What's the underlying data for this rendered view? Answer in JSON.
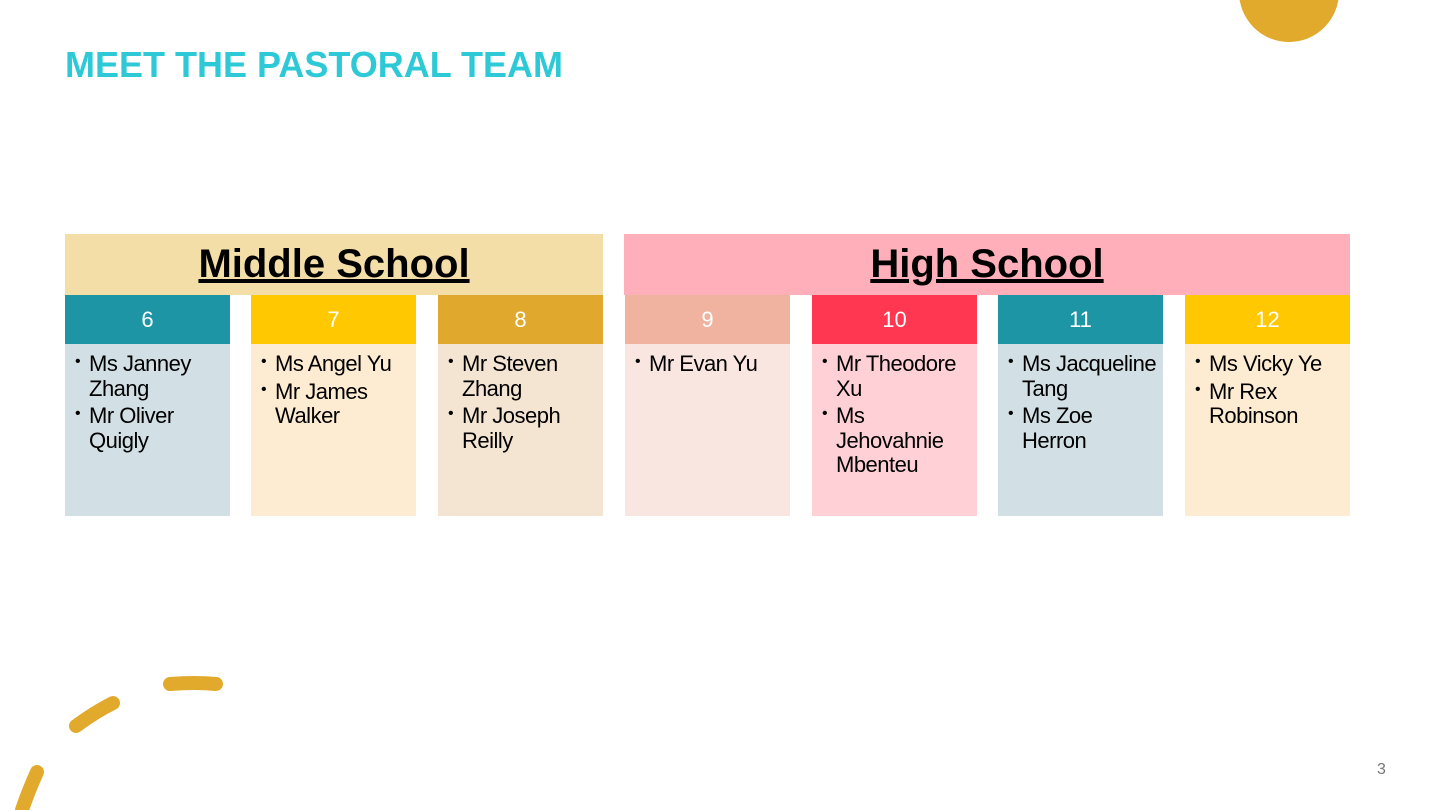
{
  "title": "MEET THE PASTORAL TEAM",
  "page_number": "3",
  "colors": {
    "title": "#2ec9d6",
    "accent": "#e2aa2c"
  },
  "sections": [
    {
      "label": "Middle School",
      "color": "#f3dea8"
    },
    {
      "label": "High School",
      "color": "#ffafb9"
    }
  ],
  "grades": [
    {
      "grade": "6",
      "header_color": "#1e95a5",
      "body_color": "#d2dfe5",
      "staff": [
        "Ms Janney Zhang",
        "Mr Oliver Quigly"
      ]
    },
    {
      "grade": "7",
      "header_color": "#ffc800",
      "body_color": "#feecd2",
      "staff": [
        "Ms Angel Yu",
        "Mr James Walker"
      ]
    },
    {
      "grade": "8",
      "header_color": "#e0a92e",
      "body_color": "#f4e5d3",
      "staff": [
        "Mr Steven Zhang",
        "Mr Joseph Reilly"
      ]
    },
    {
      "grade": "9",
      "header_color": "#efb3a0",
      "body_color": "#fae6e1",
      "staff": [
        "Mr Evan Yu"
      ]
    },
    {
      "grade": "10",
      "header_color": "#ff3750",
      "body_color": "#ffd1d6",
      "staff": [
        "Mr Theodore Xu",
        "Ms Jehovahnie Mbenteu"
      ]
    },
    {
      "grade": "11",
      "header_color": "#1e95a5",
      "body_color": "#d2dfe5",
      "staff": [
        "Ms Jacqueline Tang",
        "Ms Zoe Herron"
      ]
    },
    {
      "grade": "12",
      "header_color": "#ffc800",
      "body_color": "#feecd2",
      "staff": [
        "Ms Vicky Ye",
        "Mr Rex Robinson"
      ]
    }
  ]
}
